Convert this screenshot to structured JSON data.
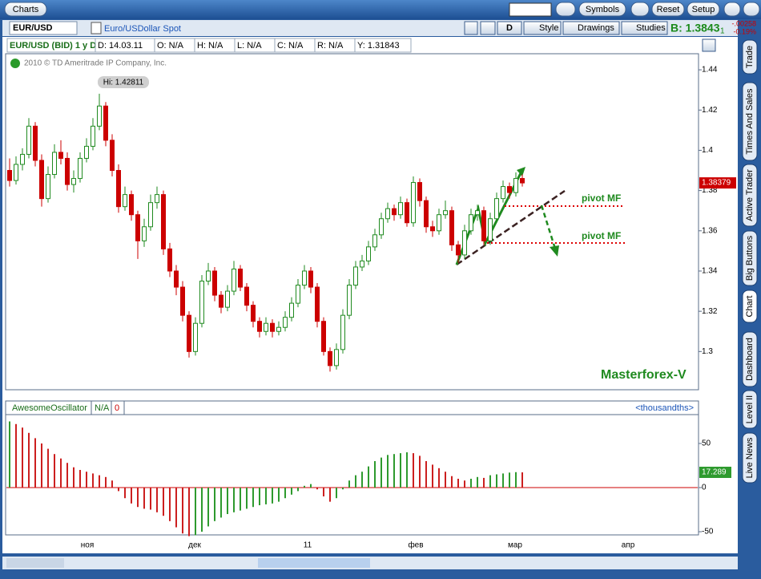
{
  "toolbar": {
    "tab": "Charts",
    "buttons": [
      "Symbols",
      "Reset",
      "Setup"
    ]
  },
  "symbol_bar": {
    "symbol": "EUR/USD",
    "description": "Euro/USDollar Spot",
    "period": "D",
    "style": "Style",
    "drawings": "Drawings",
    "studies": "Studies",
    "bid": "B: 1.3843",
    "bid_fraction": "1",
    "change": "-.00258",
    "change_pct": "-0.19%"
  },
  "info": [
    "EUR/USD (BID) 1 y D",
    "D: 14.03.11",
    "O: N/A",
    "H: N/A",
    "L: N/A",
    "C: N/A",
    "R: N/A",
    "Y: 1.31843"
  ],
  "copyright": "2010 © TD Ameritrade IP Company, Inc.",
  "side_tabs": [
    "Trade",
    "Times And Sales",
    "Active Trader",
    "Big Buttons",
    "Chart",
    "Dashboard",
    "Level II",
    "Live News"
  ],
  "chart": {
    "type": "candlestick",
    "up_color": "#1f8a1f",
    "down_color": "#cc0000",
    "ylim": [
      1.281,
      1.4476
    ],
    "yticks": [
      1.44,
      1.42,
      1.4,
      1.38,
      1.36,
      1.34,
      1.32,
      1.3
    ],
    "high_label": "Hi: 1.42811",
    "last_price": 1.38379,
    "annotations": [
      "pivot MF",
      "pivot MF",
      "Masterforex-V"
    ],
    "months": [
      "ноя",
      "дек",
      "11",
      "фев",
      "мар",
      "апр"
    ],
    "candles": [
      [
        1.39,
        1.396,
        1.382,
        1.385
      ],
      [
        1.385,
        1.397,
        1.383,
        1.393
      ],
      [
        1.393,
        1.401,
        1.39,
        1.398
      ],
      [
        1.398,
        1.416,
        1.396,
        1.412
      ],
      [
        1.412,
        1.414,
        1.392,
        1.395
      ],
      [
        1.395,
        1.398,
        1.372,
        1.376
      ],
      [
        1.376,
        1.392,
        1.374,
        1.388
      ],
      [
        1.388,
        1.403,
        1.386,
        1.399
      ],
      [
        1.399,
        1.405,
        1.393,
        1.396
      ],
      [
        1.396,
        1.399,
        1.38,
        1.383
      ],
      [
        1.383,
        1.39,
        1.379,
        1.386
      ],
      [
        1.386,
        1.399,
        1.384,
        1.396
      ],
      [
        1.396,
        1.406,
        1.394,
        1.402
      ],
      [
        1.402,
        1.416,
        1.4,
        1.412
      ],
      [
        1.412,
        1.4281,
        1.41,
        1.422
      ],
      [
        1.422,
        1.424,
        1.402,
        1.405
      ],
      [
        1.405,
        1.408,
        1.387,
        1.39
      ],
      [
        1.39,
        1.393,
        1.369,
        1.372
      ],
      [
        1.372,
        1.382,
        1.37,
        1.378
      ],
      [
        1.378,
        1.38,
        1.365,
        1.368
      ],
      [
        1.368,
        1.37,
        1.346,
        1.355
      ],
      [
        1.355,
        1.366,
        1.352,
        1.362
      ],
      [
        1.362,
        1.378,
        1.36,
        1.374
      ],
      [
        1.374,
        1.382,
        1.371,
        1.378
      ],
      [
        1.378,
        1.38,
        1.348,
        1.351
      ],
      [
        1.351,
        1.354,
        1.337,
        1.34
      ],
      [
        1.34,
        1.343,
        1.328,
        1.332
      ],
      [
        1.332,
        1.335,
        1.315,
        1.318
      ],
      [
        1.318,
        1.32,
        1.297,
        1.3
      ],
      [
        1.3,
        1.317,
        1.298,
        1.314
      ],
      [
        1.314,
        1.338,
        1.312,
        1.335
      ],
      [
        1.335,
        1.344,
        1.333,
        1.34
      ],
      [
        1.34,
        1.342,
        1.325,
        1.328
      ],
      [
        1.328,
        1.33,
        1.319,
        1.322
      ],
      [
        1.322,
        1.333,
        1.32,
        1.33
      ],
      [
        1.33,
        1.345,
        1.328,
        1.341
      ],
      [
        1.341,
        1.343,
        1.33,
        1.332
      ],
      [
        1.332,
        1.334,
        1.32,
        1.323
      ],
      [
        1.323,
        1.325,
        1.312,
        1.315
      ],
      [
        1.315,
        1.317,
        1.307,
        1.31
      ],
      [
        1.31,
        1.317,
        1.308,
        1.314
      ],
      [
        1.314,
        1.316,
        1.307,
        1.31
      ],
      [
        1.31,
        1.315,
        1.308,
        1.312
      ],
      [
        1.312,
        1.32,
        1.31,
        1.317
      ],
      [
        1.317,
        1.327,
        1.315,
        1.324
      ],
      [
        1.324,
        1.336,
        1.322,
        1.333
      ],
      [
        1.333,
        1.343,
        1.331,
        1.34
      ],
      [
        1.34,
        1.342,
        1.329,
        1.332
      ],
      [
        1.332,
        1.334,
        1.312,
        1.315
      ],
      [
        1.315,
        1.317,
        1.298,
        1.3
      ],
      [
        1.3,
        1.302,
        1.29,
        1.293
      ],
      [
        1.293,
        1.304,
        1.291,
        1.301
      ],
      [
        1.301,
        1.321,
        1.299,
        1.318
      ],
      [
        1.318,
        1.336,
        1.316,
        1.333
      ],
      [
        1.333,
        1.345,
        1.331,
        1.342
      ],
      [
        1.342,
        1.348,
        1.34,
        1.345
      ],
      [
        1.345,
        1.355,
        1.343,
        1.352
      ],
      [
        1.352,
        1.361,
        1.35,
        1.358
      ],
      [
        1.358,
        1.369,
        1.356,
        1.366
      ],
      [
        1.366,
        1.374,
        1.364,
        1.371
      ],
      [
        1.371,
        1.373,
        1.365,
        1.368
      ],
      [
        1.368,
        1.377,
        1.366,
        1.374
      ],
      [
        1.374,
        1.376,
        1.362,
        1.364
      ],
      [
        1.364,
        1.387,
        1.362,
        1.384
      ],
      [
        1.384,
        1.386,
        1.372,
        1.375
      ],
      [
        1.375,
        1.377,
        1.359,
        1.362
      ],
      [
        1.362,
        1.365,
        1.357,
        1.36
      ],
      [
        1.36,
        1.371,
        1.358,
        1.368
      ],
      [
        1.368,
        1.375,
        1.366,
        1.37
      ],
      [
        1.37,
        1.372,
        1.35,
        1.353
      ],
      [
        1.353,
        1.355,
        1.344,
        1.348
      ],
      [
        1.348,
        1.363,
        1.346,
        1.36
      ],
      [
        1.36,
        1.371,
        1.358,
        1.368
      ],
      [
        1.368,
        1.373,
        1.365,
        1.37
      ],
      [
        1.37,
        1.372,
        1.353,
        1.355
      ],
      [
        1.355,
        1.369,
        1.353,
        1.366
      ],
      [
        1.366,
        1.379,
        1.364,
        1.376
      ],
      [
        1.376,
        1.385,
        1.374,
        1.382
      ],
      [
        1.382,
        1.384,
        1.376,
        1.379
      ],
      [
        1.379,
        1.389,
        1.377,
        1.386
      ],
      [
        1.386,
        1.388,
        1.382,
        1.3838
      ]
    ]
  },
  "oscillator": {
    "type": "bar",
    "name": "AwesomeOscillator",
    "status": "N/A",
    "param": "0",
    "units": "<thousandths>",
    "up_color": "#2e9a2e",
    "down_color": "#cc1f1f",
    "ylim": [
      -52.7,
      81.8
    ],
    "yticks": [
      50,
      0,
      -50
    ],
    "last_value": 17.289,
    "values": [
      75,
      72,
      68,
      62,
      56,
      50,
      44,
      38,
      33,
      28,
      23,
      20,
      18,
      16,
      14,
      12,
      8,
      -4,
      -12,
      -18,
      -22,
      -24,
      -25,
      -28,
      -32,
      -38,
      -45,
      -52,
      -55,
      -54,
      -50,
      -44,
      -38,
      -34,
      -30,
      -28,
      -26,
      -24,
      -22,
      -20,
      -19,
      -18,
      -16,
      -12,
      -8,
      -4,
      2,
      4,
      -2,
      -10,
      -16,
      -12,
      -2,
      8,
      14,
      18,
      24,
      30,
      34,
      37,
      38,
      39,
      40,
      39,
      36,
      30,
      26,
      22,
      18,
      13,
      10,
      8,
      10,
      12,
      11,
      14,
      15,
      16,
      17,
      17.5,
      17.289
    ]
  }
}
